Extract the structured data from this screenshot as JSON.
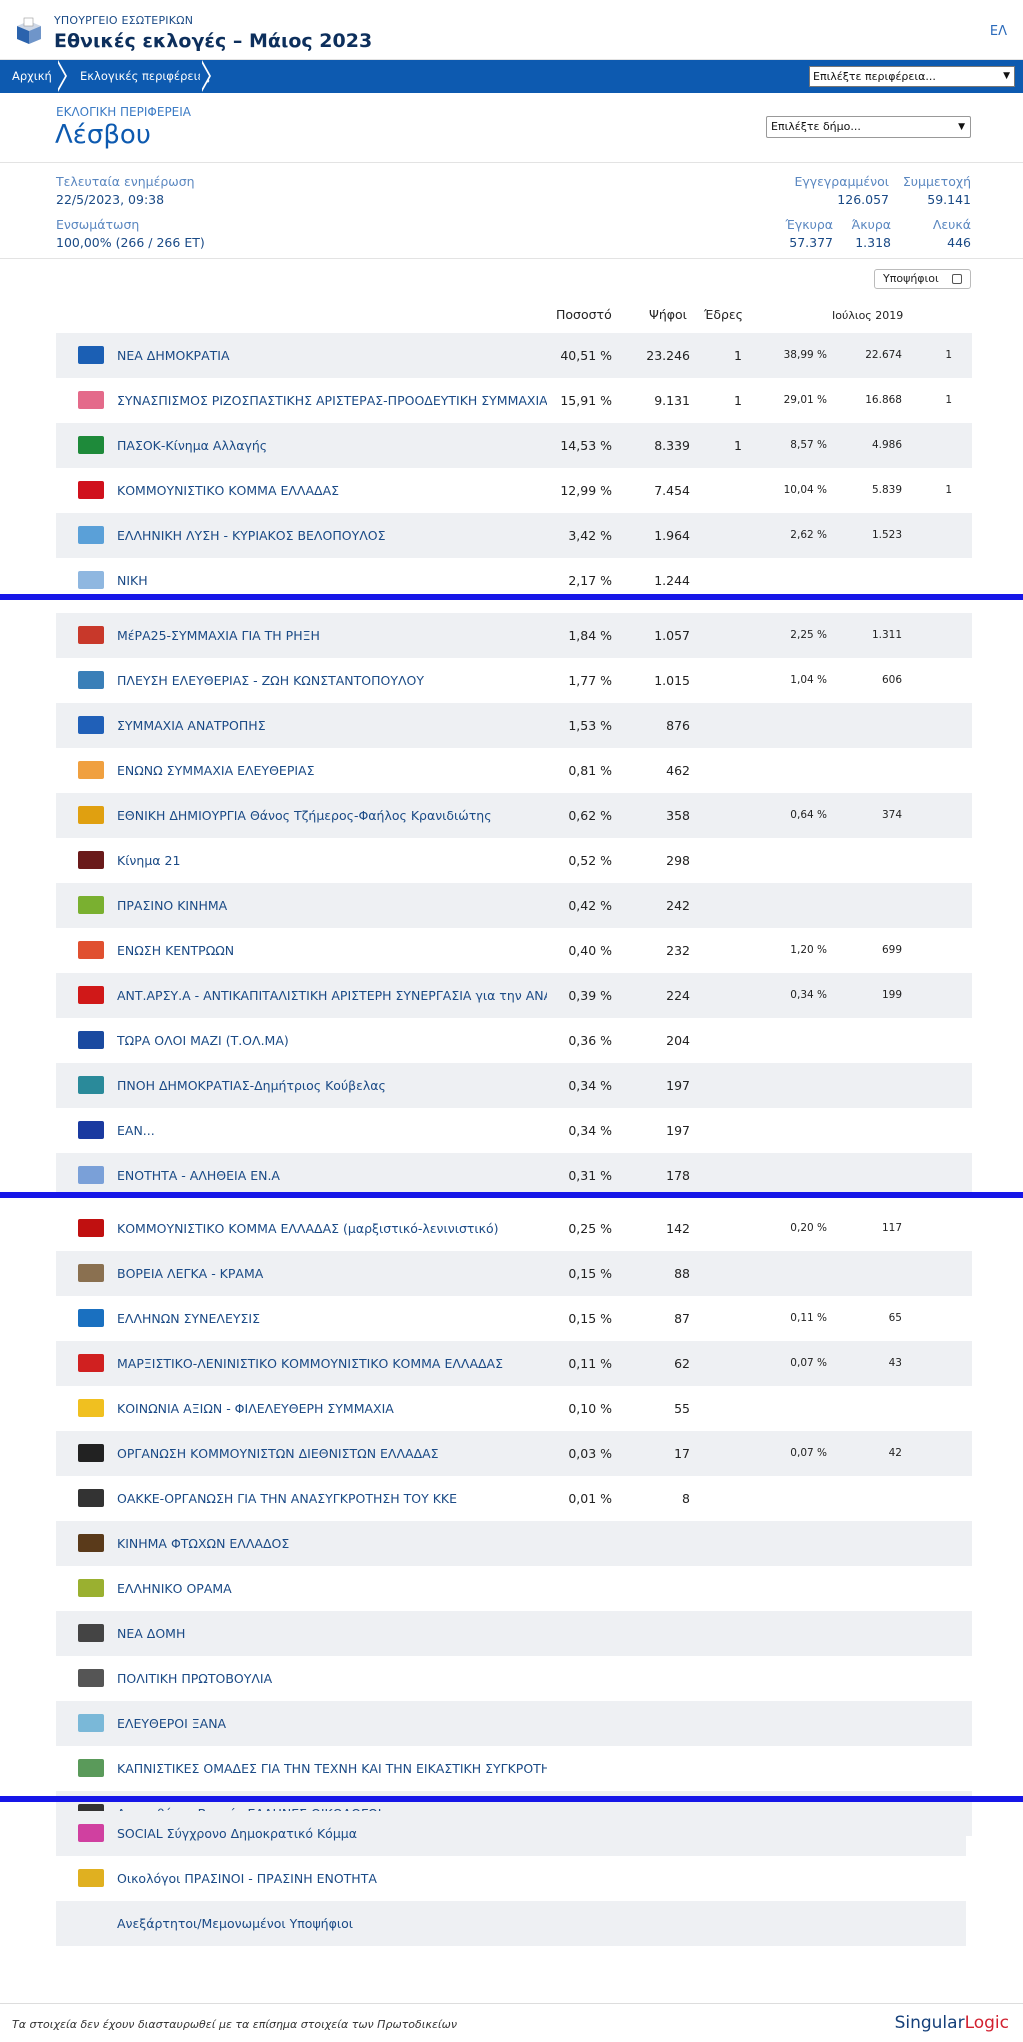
{
  "header": {
    "ministry": "ΥΠΟΥΡΓΕΙΟ ΕΣΩΤΕΡΙΚΩΝ",
    "title": "Εθνικές εκλογές – Μάιος 2023",
    "lang": "ΕΛ"
  },
  "breadcrumb": {
    "home": "Αρχική",
    "districts": "Εκλογικές περιφέρειες",
    "region_select": "Επιλέξτε περιφέρεια..."
  },
  "district": {
    "label": "ΕΚΛΟΓΙΚΗ ΠΕΡΙΦΕΡΕΙΑ",
    "name": "Λέσβου",
    "municipality_select": "Επιλέξτε δήμο..."
  },
  "stats": {
    "last_update_label": "Τελευταία ενημέρωση",
    "last_update": "22/5/2023, 09:38",
    "integration_label": "Ενσωμάτωση",
    "integration": "100,00% (266 / 266 ΕΤ)",
    "registered_label": "Εγγεγραμμένοι",
    "registered": "126.057",
    "turnout_label": "Συμμετοχή",
    "turnout": "59.141",
    "valid_label": "Έγκυρα",
    "valid": "57.377",
    "invalid_label": "Άκυρα",
    "invalid": "1.318",
    "blank_label": "Λευκά",
    "blank": "446"
  },
  "table": {
    "candidates_toggle": "Υποψήφιοι",
    "col_pct": "Ποσοστό",
    "col_votes": "Ψήφοι",
    "col_seats": "Έδρες",
    "col_prev": "Ιούλιος 2019",
    "rows": [
      {
        "party": "ΝΕΑ ΔΗΜΟΚΡΑΤΙΑ",
        "pct": "40,51 %",
        "votes": "23.246",
        "seats": "1",
        "ppct": "38,99 %",
        "pvotes": "22.674",
        "pseats": "1",
        "color": "#1b5fb4"
      },
      {
        "party": "ΣΥΝΑΣΠΙΣΜΟΣ ΡΙΖΟΣΠΑΣΤΙΚΗΣ ΑΡΙΣΤΕΡΑΣ-ΠΡΟΟΔΕΥΤΙΚΗ ΣΥΜΜΑΧΙΑ",
        "pct": "15,91 %",
        "votes": "9.131",
        "seats": "1",
        "ppct": "29,01 %",
        "pvotes": "16.868",
        "pseats": "1",
        "color": "#e46a8a"
      },
      {
        "party": "ΠΑΣΟΚ-Κίνημα Αλλαγής",
        "pct": "14,53 %",
        "votes": "8.339",
        "seats": "1",
        "ppct": "8,57 %",
        "pvotes": "4.986",
        "pseats": "",
        "color": "#1e8a3a"
      },
      {
        "party": "ΚΟΜΜΟΥΝΙΣΤΙΚΟ ΚΟΜΜΑ ΕΛΛΑΔΑΣ",
        "pct": "12,99 %",
        "votes": "7.454",
        "seats": "",
        "ppct": "10,04 %",
        "pvotes": "5.839",
        "pseats": "1",
        "color": "#d0101c"
      },
      {
        "party": "ΕΛΛΗΝΙΚΗ ΛΥΣΗ - ΚΥΡΙΑΚΟΣ ΒΕΛΟΠΟΥΛΟΣ",
        "pct": "3,42 %",
        "votes": "1.964",
        "seats": "",
        "ppct": "2,62 %",
        "pvotes": "1.523",
        "pseats": "",
        "color": "#5aa0d8"
      },
      {
        "party": "ΝΙΚΗ",
        "pct": "2,17 %",
        "votes": "1.244",
        "seats": "",
        "ppct": "",
        "pvotes": "",
        "pseats": "",
        "color": "#8fb7e0"
      },
      {
        "party": "ΜέΡΑ25-ΣΥΜΜΑΧΙΑ ΓΙΑ ΤΗ ΡΗΞΗ",
        "pct": "1,84 %",
        "votes": "1.057",
        "seats": "",
        "ppct": "2,25 %",
        "pvotes": "1.311",
        "pseats": "",
        "color": "#c8382a"
      },
      {
        "party": "ΠΛΕΥΣΗ ΕΛΕΥΘΕΡΙΑΣ - ΖΩΗ ΚΩΝΣΤΑΝΤΟΠΟΥΛΟΥ",
        "pct": "1,77 %",
        "votes": "1.015",
        "seats": "",
        "ppct": "1,04 %",
        "pvotes": "606",
        "pseats": "",
        "color": "#3a7fb8"
      },
      {
        "party": "ΣΥΜΜΑΧΙΑ ΑΝΑΤΡΟΠΗΣ",
        "pct": "1,53 %",
        "votes": "876",
        "seats": "",
        "ppct": "",
        "pvotes": "",
        "pseats": "",
        "color": "#2060b8"
      },
      {
        "party": "ΕΝΩΝΩ ΣΥΜΜΑΧΙΑ ΕΛΕΥΘΕΡΙΑΣ",
        "pct": "0,81 %",
        "votes": "462",
        "seats": "",
        "ppct": "",
        "pvotes": "",
        "pseats": "",
        "color": "#f0a040"
      },
      {
        "party": "ΕΘΝΙΚΗ ΔΗΜΙΟΥΡΓΙΑ Θάνος Τζήμερος-Φαήλος Κρανιδιώτης",
        "pct": "0,62 %",
        "votes": "358",
        "seats": "",
        "ppct": "0,64 %",
        "pvotes": "374",
        "pseats": "",
        "color": "#e0a010"
      },
      {
        "party": "Κίνημα 21",
        "pct": "0,52 %",
        "votes": "298",
        "seats": "",
        "ppct": "",
        "pvotes": "",
        "pseats": "",
        "color": "#6a1a1a"
      },
      {
        "party": "ΠΡΑΣΙΝΟ ΚΙΝΗΜΑ",
        "pct": "0,42 %",
        "votes": "242",
        "seats": "",
        "ppct": "",
        "pvotes": "",
        "pseats": "",
        "color": "#7ab030"
      },
      {
        "party": "ΕΝΩΣΗ ΚΕΝΤΡΩΩΝ",
        "pct": "0,40 %",
        "votes": "232",
        "seats": "",
        "ppct": "1,20 %",
        "pvotes": "699",
        "pseats": "",
        "color": "#e05030"
      },
      {
        "party": "ΑΝΤ.ΑΡΣΥ.Α - ΑΝΤΙΚΑΠΙΤΑΛΙΣΤΙΚΗ ΑΡΙΣΤΕΡΗ ΣΥΝΕΡΓΑΣΙΑ για την ΑΝΑΤ...",
        "pct": "0,39 %",
        "votes": "224",
        "seats": "",
        "ppct": "0,34 %",
        "pvotes": "199",
        "pseats": "",
        "color": "#d01818"
      },
      {
        "party": "ΤΩΡΑ ΟΛΟΙ ΜΑΖΙ (Τ.ΟΛ.ΜΑ)",
        "pct": "0,36 %",
        "votes": "204",
        "seats": "",
        "ppct": "",
        "pvotes": "",
        "pseats": "",
        "color": "#1a4aa0"
      },
      {
        "party": "ΠΝΟΗ ΔΗΜΟΚΡΑΤΙΑΣ-Δημήτριος Κούβελας",
        "pct": "0,34 %",
        "votes": "197",
        "seats": "",
        "ppct": "",
        "pvotes": "",
        "pseats": "",
        "color": "#2a8a9a"
      },
      {
        "party": "ΕΑΝ...",
        "pct": "0,34 %",
        "votes": "197",
        "seats": "",
        "ppct": "",
        "pvotes": "",
        "pseats": "",
        "color": "#1a3aa0"
      },
      {
        "party": "ΕΝΟΤΗΤΑ - ΑΛΗΘΕΙΑ ΕΝ.Α",
        "pct": "0,31 %",
        "votes": "178",
        "seats": "",
        "ppct": "",
        "pvotes": "",
        "pseats": "",
        "color": "#7aa0d8"
      },
      {
        "party": "ΚΟΜΜΟΥΝΙΣΤΙΚΟ ΚΟΜΜΑ ΕΛΛΑΔΑΣ (μαρξιστικό-λενινιστικό)",
        "pct": "0,25 %",
        "votes": "142",
        "seats": "",
        "ppct": "0,20 %",
        "pvotes": "117",
        "pseats": "",
        "color": "#c01010"
      },
      {
        "party": "ΒΟΡΕΙΑ ΛΕΓΚΑ - ΚΡΑΜΑ",
        "pct": "0,15 %",
        "votes": "88",
        "seats": "",
        "ppct": "",
        "pvotes": "",
        "pseats": "",
        "color": "#8a7050"
      },
      {
        "party": "ΕΛΛΗΝΩΝ ΣΥΝΕΛΕΥΣΙΣ",
        "pct": "0,15 %",
        "votes": "87",
        "seats": "",
        "ppct": "0,11 %",
        "pvotes": "65",
        "pseats": "",
        "color": "#1a70c0"
      },
      {
        "party": "ΜΑΡΞΙΣΤΙΚΟ-ΛΕΝΙΝΙΣΤΙΚΟ ΚΟΜΜΟΥΝΙΣΤΙΚΟ ΚΟΜΜΑ ΕΛΛΑΔΑΣ",
        "pct": "0,11 %",
        "votes": "62",
        "seats": "",
        "ppct": "0,07 %",
        "pvotes": "43",
        "pseats": "",
        "color": "#d02020"
      },
      {
        "party": "ΚΟΙΝΩΝΙΑ ΑΞΙΩΝ - ΦΙΛΕΛΕΥΘΕΡΗ ΣΥΜΜΑΧΙΑ",
        "pct": "0,10 %",
        "votes": "55",
        "seats": "",
        "ppct": "",
        "pvotes": "",
        "pseats": "",
        "color": "#f0c020"
      },
      {
        "party": "ΟΡΓΑΝΩΣΗ ΚΟΜΜΟΥΝΙΣΤΩΝ ΔΙΕΘΝΙΣΤΩΝ ΕΛΛΑΔΑΣ",
        "pct": "0,03 %",
        "votes": "17",
        "seats": "",
        "ppct": "0,07 %",
        "pvotes": "42",
        "pseats": "",
        "color": "#222222"
      },
      {
        "party": "ΟΑΚΚΕ-ΟΡΓΑΝΩΣΗ ΓΙΑ ΤΗΝ ΑΝΑΣΥΓΚΡΟΤΗΣΗ ΤΟΥ ΚΚΕ",
        "pct": "0,01 %",
        "votes": "8",
        "seats": "",
        "ppct": "",
        "pvotes": "",
        "pseats": "",
        "color": "#333333"
      },
      {
        "party": "ΚΙΝΗΜΑ ΦΤΩΧΩΝ ΕΛΛΑΔΟΣ",
        "pct": "",
        "votes": "",
        "seats": "",
        "ppct": "",
        "pvotes": "",
        "pseats": "",
        "color": "#5a3a1a"
      },
      {
        "party": "ΕΛΛΗΝΙΚΟ ΟΡΑΜΑ",
        "pct": "",
        "votes": "",
        "seats": "",
        "ppct": "",
        "pvotes": "",
        "pseats": "",
        "color": "#9ab030"
      },
      {
        "party": "ΝΕΑ ΔΟΜΗ",
        "pct": "",
        "votes": "",
        "seats": "",
        "ppct": "",
        "pvotes": "",
        "pseats": "",
        "color": "#444444"
      },
      {
        "party": "ΠΟΛΙΤΙΚΗ ΠΡΩΤΟΒΟΥΛΙΑ",
        "pct": "",
        "votes": "",
        "seats": "",
        "ppct": "",
        "pvotes": "",
        "pseats": "",
        "color": "#555555"
      },
      {
        "party": "ΕΛΕΥΘΕΡΟΙ ΞΑΝΑ",
        "pct": "",
        "votes": "",
        "seats": "",
        "ppct": "",
        "pvotes": "",
        "pseats": "",
        "color": "#7ab8d8"
      },
      {
        "party": "ΚΑΠΝΙΣΤΙΚΕΣ ΟΜΑΔΕΣ ΓΙΑ ΤΗΝ ΤΕΧΝΗ ΚΑΙ ΤΗΝ ΕΙΚΑΣΤΙΚΗ ΣΥΓΚΡΟΤΗ...",
        "pct": "",
        "votes": "",
        "seats": "",
        "ppct": "",
        "pvotes": "",
        "pseats": "",
        "color": "#5a9a5a"
      },
      {
        "party": "Δημοσθένης Βεργής ΕΛΛΗΝΕΣ ΟΙΚΟΛΟΓΟΙ",
        "pct": "",
        "votes": "",
        "seats": "",
        "ppct": "",
        "pvotes": "",
        "pseats": "",
        "color": "#333333"
      },
      {
        "party": "SOCIAL Σύγχρονο Δημοκρατικό Κόμμα",
        "pct": "",
        "votes": "",
        "seats": "",
        "ppct": "",
        "pvotes": "",
        "pseats": "",
        "color": "#d040a0"
      },
      {
        "party": "Οικολόγοι ΠΡΑΣΙΝΟΙ - ΠΡΑΣΙΝΗ ΕΝΟΤΗΤΑ",
        "pct": "",
        "votes": "",
        "seats": "",
        "ppct": "",
        "pvotes": "",
        "pseats": "",
        "color": "#e0b020"
      },
      {
        "party": "Ανεξάρτητοι/Μεμονωμένοι Υποψήφιοι",
        "pct": "",
        "votes": "",
        "seats": "",
        "ppct": "",
        "pvotes": "",
        "pseats": "",
        "color": ""
      }
    ]
  },
  "footer": {
    "note": "Τα στοιχεία δεν έχουν διασταυρωθεί με τα επίσημα στοιχεία των Πρωτοδικείων",
    "brand_a": "Singular",
    "brand_b": "Logic"
  }
}
